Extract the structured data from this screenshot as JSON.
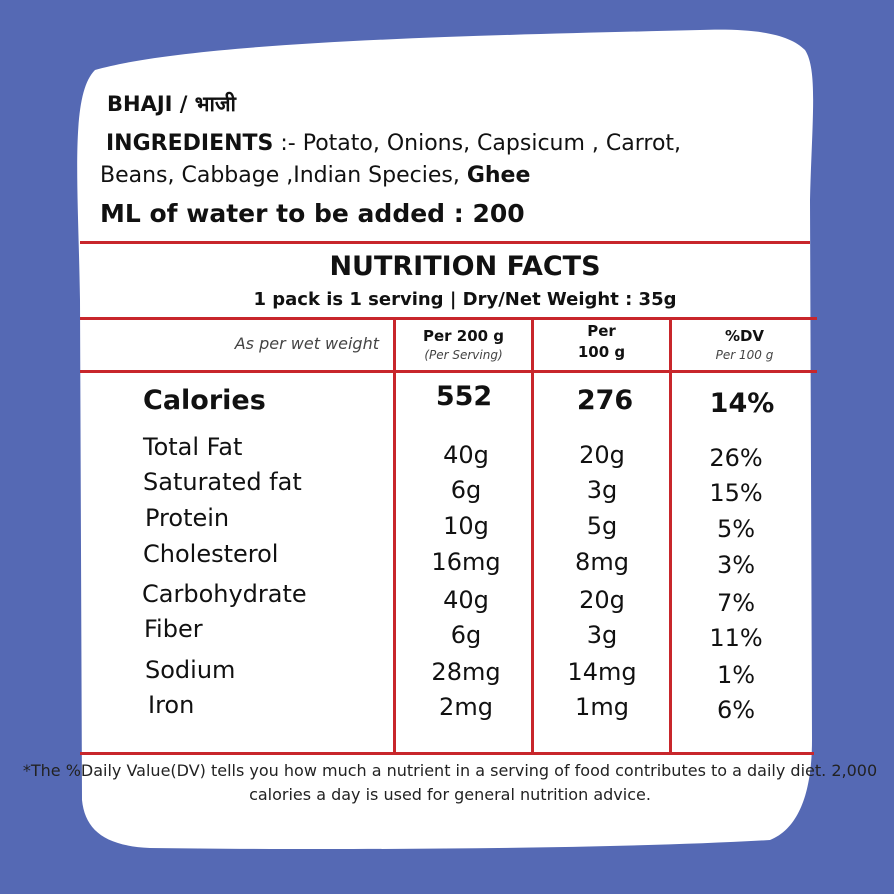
{
  "title": "BHAJI / भाजी",
  "ingredients": {
    "label": "INGREDIENTS",
    "line1": " :- Potato, Onions, Capsicum , Carrot,",
    "line2": "Beans, Cabbage ,Indian Species, ",
    "ghee": "Ghee"
  },
  "water_note": "ML of water to be added : 200",
  "nutrition": {
    "title": "NUTRITION FACTS",
    "serving": "1 pack is 1 serving | Dry/Net  Weight : 35g",
    "note": "As per wet weight",
    "columns": [
      {
        "main": "Per 200 g",
        "sub": "(Per Serving)"
      },
      {
        "main": "Per",
        "main2": "100 g"
      },
      {
        "main": "%DV",
        "sub": "Per 100 g"
      }
    ],
    "calories": {
      "name": "Calories",
      "per200": "552",
      "per100": "276",
      "dv": "14%"
    },
    "rows": [
      {
        "name": "Total Fat",
        "per200": "40g",
        "per100": "20g",
        "dv": "26%"
      },
      {
        "name": "Saturated fat",
        "per200": "6g",
        "per100": "3g",
        "dv": "15%"
      },
      {
        "name": "Protein",
        "per200": "10g",
        "per100": "5g",
        "dv": "5%"
      },
      {
        "name": "Cholesterol",
        "per200": "16mg",
        "per100": "8mg",
        "dv": "3%"
      },
      {
        "name": "Carbohydrate",
        "per200": "40g",
        "per100": "20g",
        "dv": "7%"
      },
      {
        "name": "Fiber",
        "per200": "6g",
        "per100": "3g",
        "dv": "11%"
      },
      {
        "name": "Sodium",
        "per200": "28mg",
        "per100": "14mg",
        "dv": "1%"
      },
      {
        "name": "Iron",
        "per200": "2mg",
        "per100": "1mg",
        "dv": "6%"
      }
    ]
  },
  "footnote": "*The %Daily Value(DV) tells you how much a nutrient in a serving of food contributes to a daily diet. 2,000 calories a day is used for general nutrition advice.",
  "colors": {
    "background": "#5569b4",
    "card": "#ffffff",
    "rule": "#c8262b"
  }
}
